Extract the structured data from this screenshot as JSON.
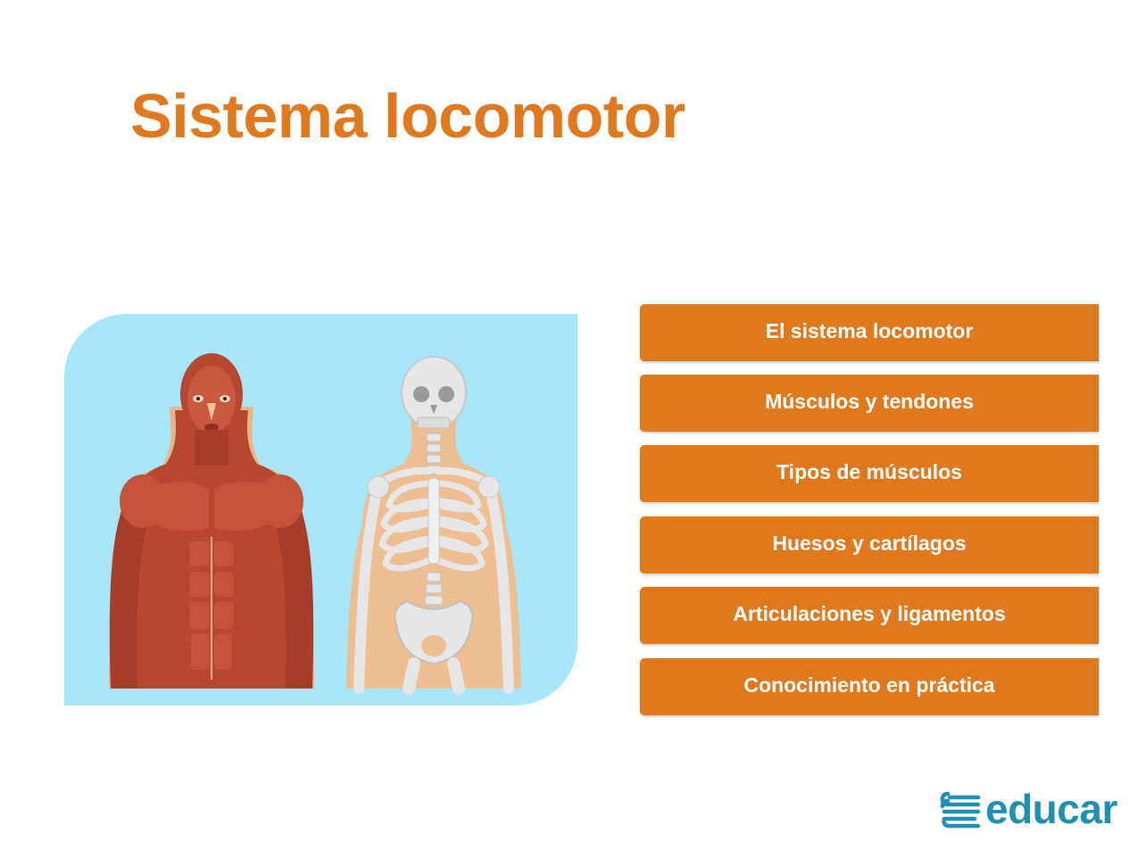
{
  "title": "Sistema locomotor",
  "illustration": {
    "background_color": "#a6e6f8",
    "figures": [
      "muscular-figure",
      "skeleton-figure"
    ]
  },
  "menu": {
    "accent_color": "#e0791e",
    "items": [
      {
        "label": "El sistema locomotor"
      },
      {
        "label": "Músculos y tendones"
      },
      {
        "label": "Tipos de músculos"
      },
      {
        "label": "Huesos y cartílagos"
      },
      {
        "label": "Articulaciones y ligamentos"
      },
      {
        "label": "Conocimiento en práctica"
      }
    ]
  },
  "logo": {
    "text": "educar",
    "color": "#1f8fb2"
  }
}
